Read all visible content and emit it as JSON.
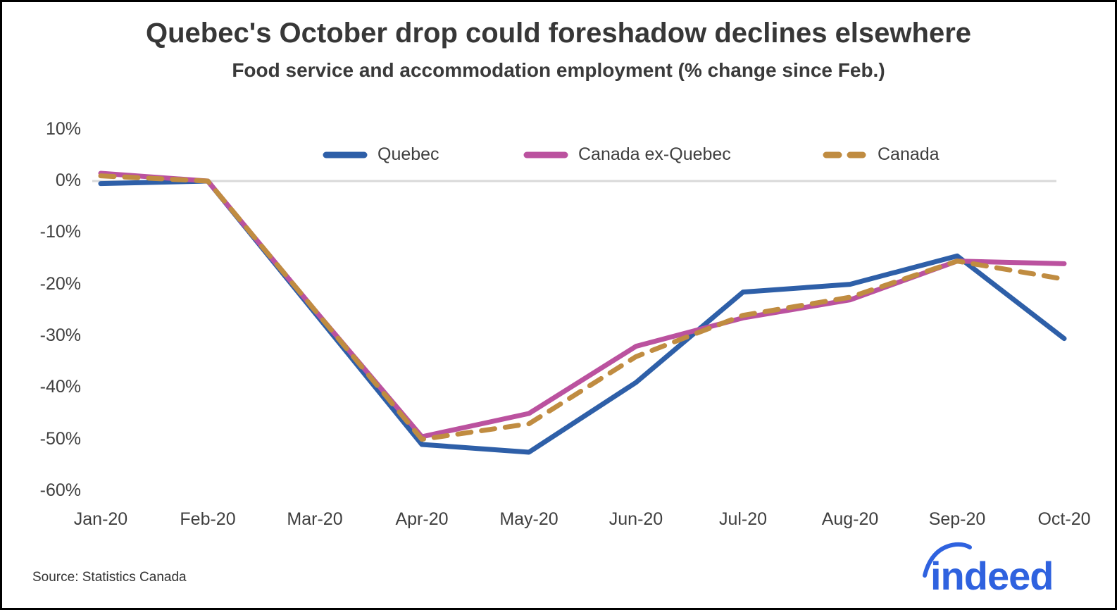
{
  "chart_data": {
    "type": "line",
    "title": "Quebec's October drop could foreshadow declines elsewhere",
    "subtitle": "Food service and accommodation employment (% change since Feb.)",
    "categories": [
      "Jan-20",
      "Feb-20",
      "Mar-20",
      "Apr-20",
      "May-20",
      "Jun-20",
      "Jul-20",
      "Aug-20",
      "Sep-20",
      "Oct-20"
    ],
    "xlabel": "",
    "ylabel": "",
    "unit": "%",
    "ylim": [
      -60,
      10
    ],
    "y_ticks": [
      10,
      0,
      -10,
      -20,
      -30,
      -40,
      -50,
      -60
    ],
    "y_tick_labels": [
      "10%",
      "0%",
      "-10%",
      "-20%",
      "-30%",
      "-40%",
      "-50%",
      "-60%"
    ],
    "grid": "zero-line-only",
    "legend_position": "top-inside",
    "series": [
      {
        "name": "Quebec",
        "color": "#2e5fa8",
        "dash": false,
        "values": [
          -0.5,
          0,
          -25.5,
          -51,
          -52.5,
          -39,
          -21.5,
          -20,
          -14.5,
          -30.5
        ]
      },
      {
        "name": "Canada ex-Quebec",
        "color": "#bb529f",
        "dash": false,
        "values": [
          1.5,
          0,
          -25,
          -49.5,
          -45,
          -32,
          -26.5,
          -23,
          -15.5,
          -16
        ]
      },
      {
        "name": "Canada",
        "color": "#c08c41",
        "dash": true,
        "values": [
          1,
          0,
          -25,
          -50,
          -47,
          -34,
          -26,
          -22.5,
          -15.5,
          -19
        ]
      }
    ]
  },
  "colors": {
    "grid_line": "#d9d9d9",
    "axis_text": "#3f3f3f",
    "logo_blue": "#2f62df"
  },
  "footer": {
    "source": "Source: Statistics Canada",
    "logo_text": "indeed"
  }
}
